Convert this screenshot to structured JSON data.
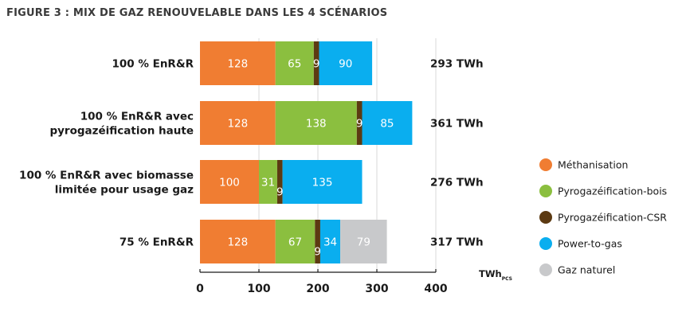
{
  "figure_title": "FIGURE 3 : MIX DE GAZ RENOUVELABLE DANS LES 4 SCÉNARIOS",
  "chart_data": {
    "type": "bar",
    "orientation": "horizontal",
    "stacked": true,
    "categories": [
      [
        "100 % EnR&R"
      ],
      [
        "100 % EnR&R avec",
        "pyrogazéification haute"
      ],
      [
        "100 % EnR&R avec biomasse",
        "limitée pour usage gaz"
      ],
      [
        "75 % EnR&R"
      ]
    ],
    "series": [
      {
        "name": "Méthanisation",
        "color": "#F07D32",
        "values": [
          128,
          128,
          100,
          128
        ]
      },
      {
        "name": "Pyrogazéification-bois",
        "color": "#8BBF3F",
        "values": [
          65,
          138,
          31,
          67
        ]
      },
      {
        "name": "Pyrogazéification-CSR",
        "color": "#5C3A12",
        "values": [
          9,
          9,
          9,
          9
        ]
      },
      {
        "name": "Power-to-gas",
        "color": "#0AAEEF",
        "values": [
          90,
          85,
          135,
          34
        ]
      },
      {
        "name": "Gaz naturel",
        "color": "#C8C9CB",
        "values": [
          0,
          0,
          0,
          79
        ]
      }
    ],
    "totals": [
      "293 TWh",
      "361 TWh",
      "276 TWh",
      "317 TWh"
    ],
    "xlim": [
      0,
      400
    ],
    "xticks": [
      "0",
      "100",
      "200",
      "300",
      "400"
    ],
    "unit_label": "TWh",
    "unit_subscript": "PCS",
    "grid": true,
    "legend_position": "right"
  }
}
